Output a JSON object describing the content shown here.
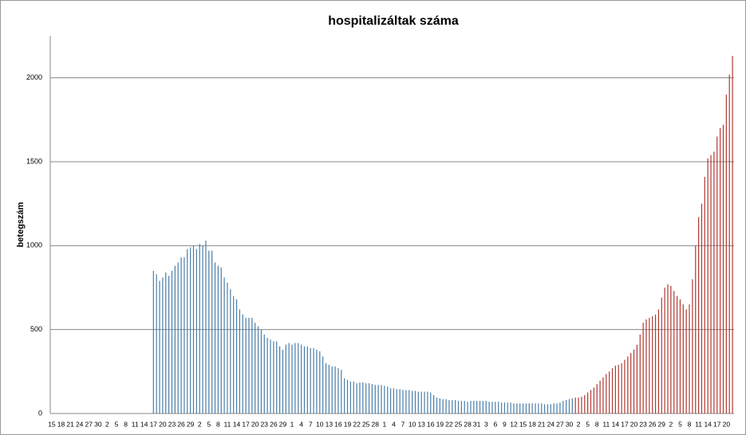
{
  "chart_data": {
    "type": "bar",
    "title": "hospitalizáltak száma",
    "y_label": "betegszám",
    "categories": [
      "15",
      null,
      null,
      "18",
      null,
      null,
      "21",
      null,
      null,
      "24",
      null,
      null,
      "27",
      null,
      null,
      "30",
      null,
      null,
      "2",
      null,
      null,
      "5",
      null,
      null,
      "8",
      null,
      null,
      "11",
      null,
      null,
      "14",
      null,
      null,
      "17",
      null,
      null,
      "20",
      null,
      null,
      "23",
      null,
      null,
      "26",
      null,
      null,
      "29",
      null,
      null,
      "2",
      null,
      null,
      "5",
      null,
      null,
      "8",
      null,
      null,
      "11",
      null,
      null,
      "14",
      null,
      null,
      "17",
      null,
      null,
      "20",
      null,
      null,
      "23",
      null,
      null,
      "26",
      null,
      null,
      "29",
      null,
      null,
      "1",
      null,
      null,
      "4",
      null,
      null,
      "7",
      null,
      null,
      "10",
      null,
      null,
      "13",
      null,
      null,
      "16",
      null,
      null,
      "19",
      null,
      null,
      "22",
      null,
      null,
      "25",
      null,
      null,
      "28",
      null,
      null,
      "1",
      null,
      null,
      "4",
      null,
      null,
      "7",
      null,
      null,
      "10",
      null,
      null,
      "13",
      null,
      null,
      "16",
      null,
      null,
      "19",
      null,
      null,
      "22",
      null,
      null,
      "25",
      null,
      null,
      "28",
      null,
      null,
      "31",
      null,
      null,
      "3",
      null,
      null,
      "6",
      null,
      null,
      "9",
      null,
      null,
      "12",
      null,
      null,
      "15",
      null,
      null,
      "18",
      null,
      null,
      "21",
      null,
      null,
      "24",
      null,
      null,
      "27",
      null,
      null,
      "30",
      null,
      null,
      "2",
      null,
      null,
      "5",
      null,
      null,
      "8",
      null,
      null,
      "11",
      null,
      null,
      "14",
      null,
      null,
      "17",
      null,
      null,
      "20",
      null,
      null,
      "23",
      null,
      null,
      "26",
      null,
      null,
      "29",
      null,
      null,
      "2",
      null,
      null,
      "5",
      null,
      null,
      "8",
      null,
      null,
      "11",
      null,
      null,
      "14",
      null,
      null,
      "17",
      null,
      null,
      "20",
      null,
      null
    ],
    "series": [
      {
        "color": "#4a7ea8",
        "values": [
          null,
          null,
          null,
          null,
          null,
          null,
          null,
          null,
          null,
          null,
          null,
          null,
          null,
          null,
          null,
          null,
          null,
          null,
          null,
          null,
          null,
          null,
          null,
          null,
          null,
          null,
          null,
          null,
          null,
          null,
          null,
          null,
          null,
          850,
          830,
          790,
          810,
          840,
          820,
          850,
          880,
          900,
          930,
          930,
          980,
          990,
          1000,
          980,
          1010,
          1000,
          1030,
          970,
          970,
          900,
          880,
          870,
          810,
          780,
          740,
          700,
          680,
          620,
          590,
          570,
          570,
          570,
          540,
          520,
          500,
          470,
          450,
          440,
          430,
          430,
          400,
          380,
          410,
          420,
          410,
          420,
          420,
          410,
          400,
          400,
          390,
          390,
          380,
          370,
          340,
          300,
          290,
          280,
          280,
          270,
          260,
          210,
          200,
          190,
          190,
          180,
          185,
          185,
          180,
          180,
          175,
          170,
          170,
          170,
          165,
          160,
          150,
          150,
          145,
          145,
          140,
          140,
          140,
          135,
          135,
          130,
          130,
          130,
          130,
          125,
          110,
          95,
          90,
          85,
          85,
          80,
          80,
          80,
          75,
          75,
          75,
          70,
          75,
          75,
          75,
          75,
          75,
          75,
          70,
          70,
          70,
          70,
          65,
          65,
          65,
          65,
          60,
          60,
          60,
          60,
          60,
          60,
          60,
          60,
          60,
          60,
          55,
          55,
          55,
          60,
          60,
          65,
          75,
          80,
          85,
          90,
          null,
          null,
          null,
          null,
          null,
          null,
          null,
          null,
          null,
          null,
          null,
          null,
          null,
          null,
          null,
          null,
          null,
          null,
          null,
          null,
          null,
          null,
          null,
          null,
          null,
          null,
          null,
          null,
          null,
          null,
          null,
          null,
          null,
          null,
          null,
          null,
          null,
          null,
          null,
          null,
          null,
          null,
          null,
          null,
          null,
          null,
          null,
          null,
          null,
          null,
          null,
          null
        ]
      },
      {
        "color": "#b03a35",
        "values": [
          null,
          null,
          null,
          null,
          null,
          null,
          null,
          null,
          null,
          null,
          null,
          null,
          null,
          null,
          null,
          null,
          null,
          null,
          null,
          null,
          null,
          null,
          null,
          null,
          null,
          null,
          null,
          null,
          null,
          null,
          null,
          null,
          null,
          null,
          null,
          null,
          null,
          null,
          null,
          null,
          null,
          null,
          null,
          null,
          null,
          null,
          null,
          null,
          null,
          null,
          null,
          null,
          null,
          null,
          null,
          null,
          null,
          null,
          null,
          null,
          null,
          null,
          null,
          null,
          null,
          null,
          null,
          null,
          null,
          null,
          null,
          null,
          null,
          null,
          null,
          null,
          null,
          null,
          null,
          null,
          null,
          null,
          null,
          null,
          null,
          null,
          null,
          null,
          null,
          null,
          null,
          null,
          null,
          null,
          null,
          null,
          null,
          null,
          null,
          null,
          null,
          null,
          null,
          null,
          null,
          null,
          null,
          null,
          null,
          null,
          null,
          null,
          null,
          null,
          null,
          null,
          null,
          null,
          null,
          null,
          null,
          null,
          null,
          null,
          null,
          null,
          null,
          null,
          null,
          null,
          null,
          null,
          null,
          null,
          null,
          null,
          null,
          null,
          null,
          null,
          null,
          null,
          null,
          null,
          null,
          null,
          null,
          null,
          null,
          null,
          null,
          null,
          null,
          null,
          null,
          null,
          null,
          null,
          null,
          null,
          null,
          null,
          null,
          null,
          null,
          null,
          null,
          null,
          null,
          null,
          95,
          95,
          100,
          110,
          125,
          140,
          155,
          175,
          195,
          215,
          235,
          250,
          270,
          285,
          290,
          300,
          320,
          340,
          360,
          380,
          410,
          470,
          540,
          560,
          570,
          580,
          590,
          620,
          690,
          750,
          770,
          760,
          730,
          700,
          680,
          650,
          620,
          650,
          800,
          1000,
          1170,
          1250,
          1410,
          1520,
          1540,
          1560,
          1650,
          1700,
          1720,
          1900,
          2020,
          2130
        ]
      }
    ],
    "ylim": [
      0,
      2250
    ],
    "yticks": [
      0,
      500,
      1000,
      1500,
      2000
    ],
    "grid": true
  }
}
